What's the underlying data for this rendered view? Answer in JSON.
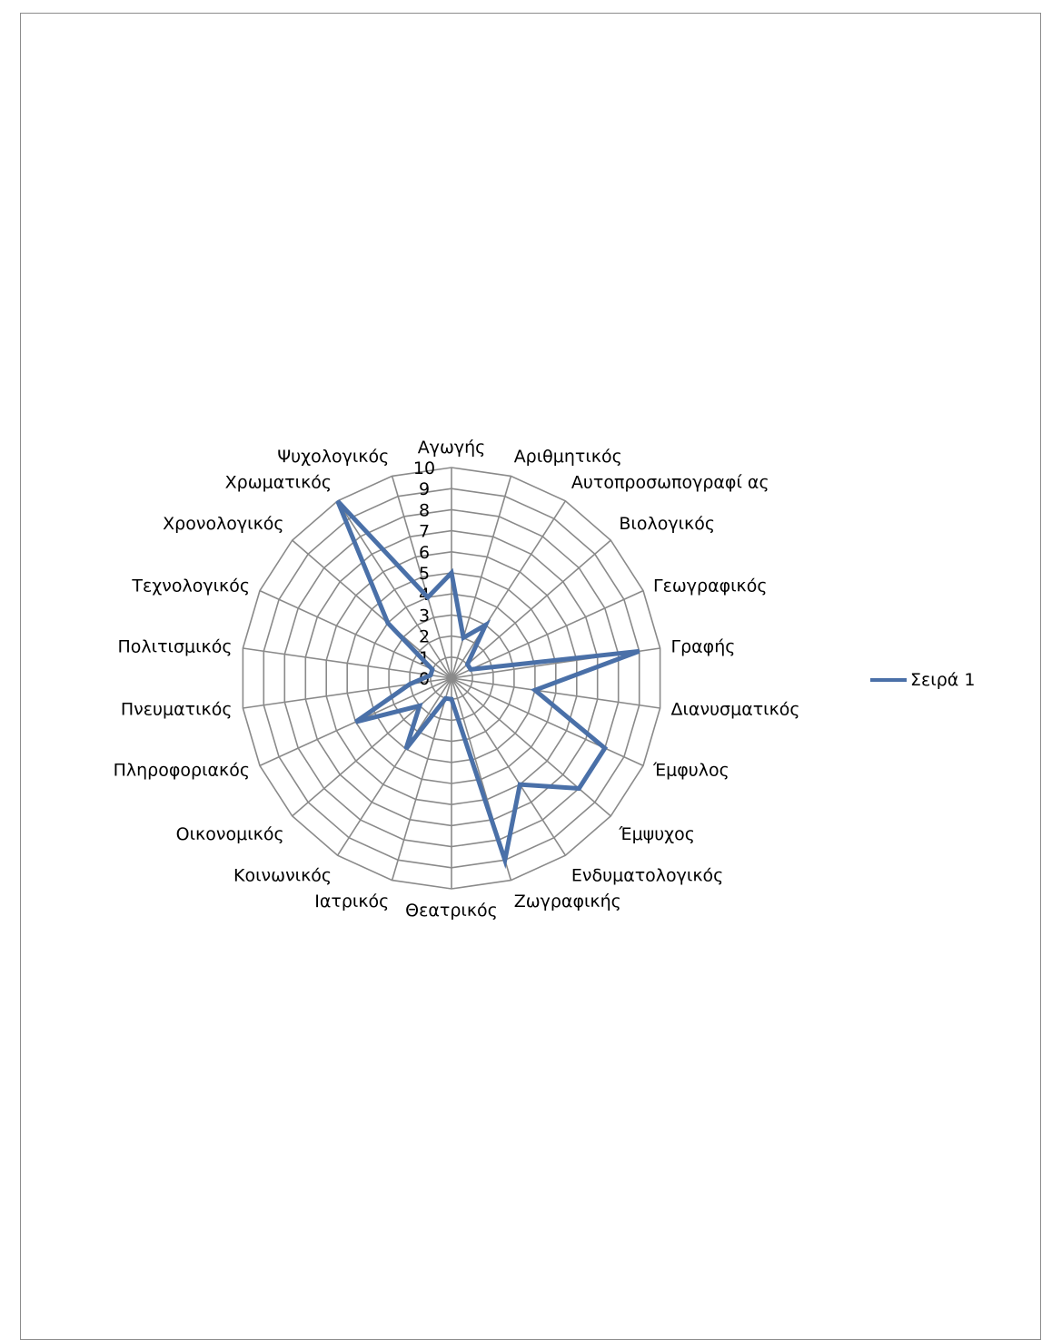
{
  "chart_data": {
    "type": "radar",
    "categories": [
      "Αγωγής",
      "Αριθμητικός",
      "Αυτοπροσωπογραφί ας",
      "Βιολογικός",
      "Γεωγραφικός",
      "Γραφής",
      "Διανυσματικός",
      "Έμφυλος",
      "Έμψυχος",
      "Ενδυματολογικός",
      "Ζωγραφικής",
      "Θεατρικός",
      "Ιατρικός",
      "Κοινωνικός",
      "Οικονομικός",
      "Πληροφοριακός",
      "Πνευματικός",
      "Πολιτισμικός",
      "Τεχνολογικός",
      "Χρονολογικός",
      "Χρωματικός",
      "Ψυχολογικός"
    ],
    "series": [
      {
        "name": "Σειρά 1",
        "values": [
          5,
          2,
          3,
          1,
          1,
          9,
          4,
          8,
          8,
          6,
          9,
          1,
          1,
          4,
          2,
          5,
          2,
          1,
          1,
          4,
          10,
          4
        ],
        "color": "#4a70a8"
      }
    ],
    "rlim": [
      0,
      10
    ],
    "rticks": [
      "0",
      "1",
      "2",
      "3",
      "4",
      "5",
      "6",
      "7",
      "8",
      "9",
      "10"
    ],
    "grid": true,
    "legend": "right"
  }
}
